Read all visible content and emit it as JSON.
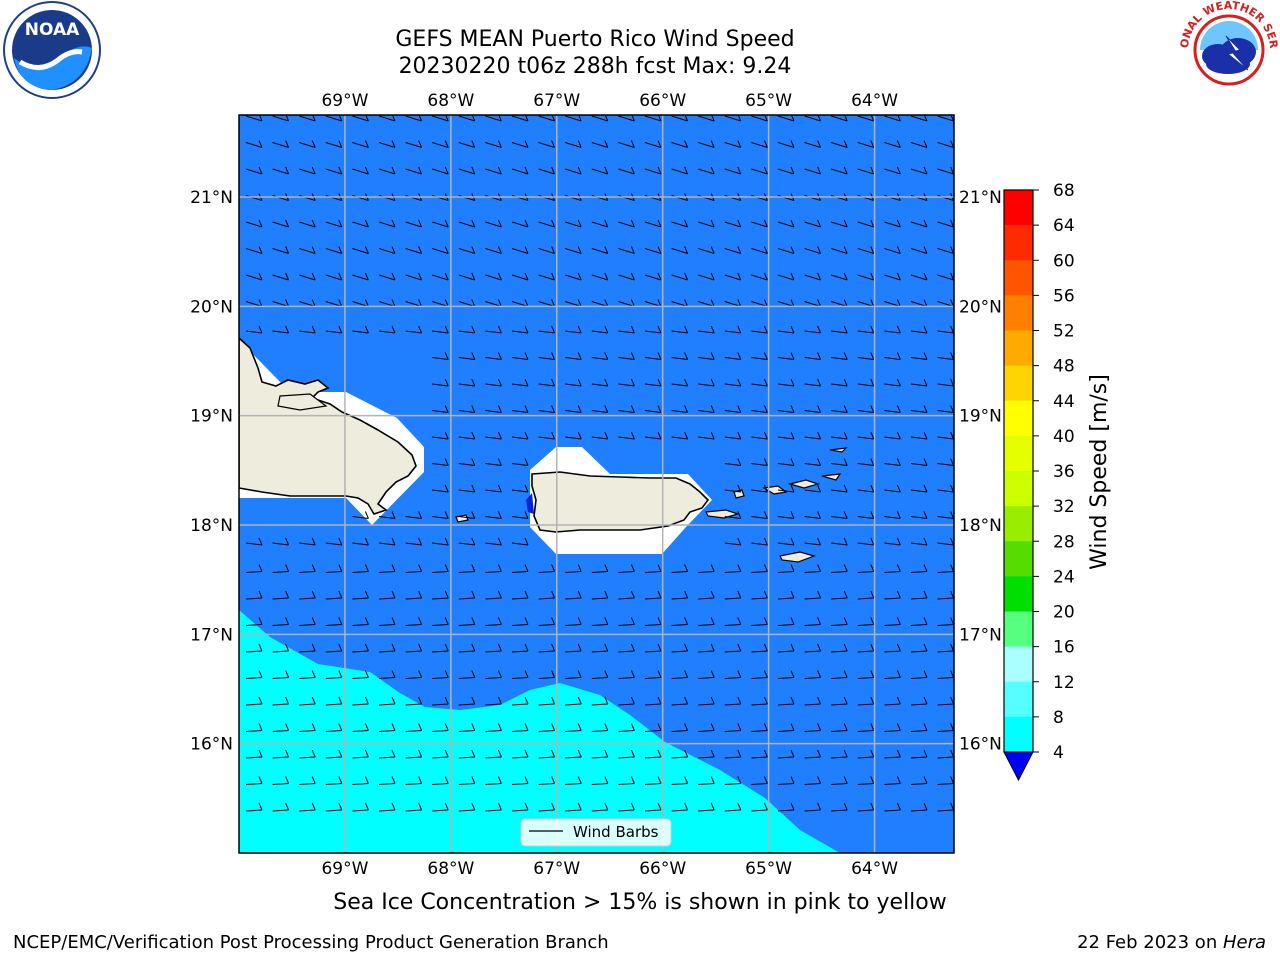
{
  "header": {
    "title_line1": "GEFS MEAN Puerto Rico Wind Speed",
    "title_line2": "20230220 t06z 288h fcst   Max: 9.24"
  },
  "logos": {
    "left": "noara-logo",
    "left_text": "NOAA",
    "right": "nws-logo",
    "right_text": "NATIONAL WEATHER SERVICE"
  },
  "map": {
    "lon_labels": [
      "69°W",
      "68°W",
      "67°W",
      "66°W",
      "65°W",
      "64°W"
    ],
    "lat_labels": [
      "21°N",
      "20°N",
      "19°N",
      "18°N",
      "17°N",
      "16°N"
    ],
    "lon_range": [
      -70,
      -63.25
    ],
    "lat_range": [
      15,
      21.75
    ],
    "colors": {
      "ocean_4_8": "#1f7fff",
      "ocean_8_12": "#00ffff",
      "land": "#eeecdc",
      "missing": "#ffffff",
      "grid": "#b3b3b3"
    },
    "legend_label": "Wind Barbs"
  },
  "colorbar": {
    "label": "Wind Speed [m/s]",
    "ticks": [
      "68",
      "64",
      "60",
      "56",
      "52",
      "48",
      "44",
      "40",
      "36",
      "32",
      "28",
      "24",
      "20",
      "16",
      "12",
      "8",
      "4"
    ],
    "colors": [
      "#ff0000",
      "#ff2a00",
      "#ff5500",
      "#ff8000",
      "#ffaa00",
      "#ffd400",
      "#ffff00",
      "#e5ff00",
      "#ccff00",
      "#99ee00",
      "#55dd00",
      "#00e000",
      "#55ff80",
      "#aaffff",
      "#55ffff",
      "#00ffff",
      "#1f7fff"
    ],
    "extend_color": "#0000ff"
  },
  "note": "Sea Ice Concentration > 15% is shown in pink to yellow",
  "footer": {
    "left": "NCEP/EMC/Verification Post Processing Product Generation Branch",
    "right_date": "22 Feb 2023 on ",
    "right_machine": "Hera"
  }
}
